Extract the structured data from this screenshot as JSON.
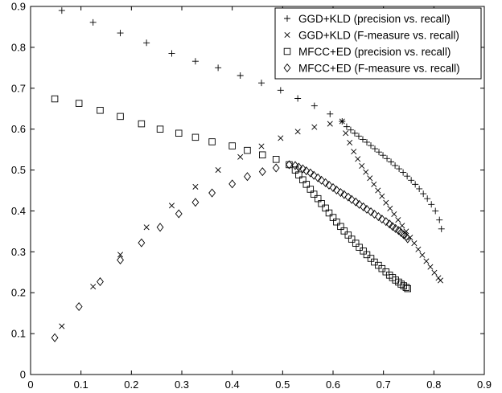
{
  "chart_data": {
    "type": "scatter",
    "title": "",
    "xlabel": "",
    "ylabel": "",
    "xlim": [
      0,
      0.9
    ],
    "ylim": [
      0,
      0.9
    ],
    "xticks": [
      "0",
      "0.1",
      "0.2",
      "0.3",
      "0.4",
      "0.5",
      "0.6",
      "0.7",
      "0.8",
      "0.9"
    ],
    "yticks": [
      "0",
      "0.1",
      "0.2",
      "0.3",
      "0.4",
      "0.5",
      "0.6",
      "0.7",
      "0.8",
      "0.9"
    ],
    "grid": false,
    "legend_position": "top-right",
    "series": [
      {
        "name": "GGD+KLD (precision vs. recall)",
        "marker": "plus",
        "x": [
          0.062,
          0.124,
          0.178,
          0.23,
          0.28,
          0.327,
          0.372,
          0.416,
          0.458,
          0.496,
          0.53,
          0.563,
          0.594,
          0.618,
          0.627,
          0.635,
          0.643,
          0.651,
          0.659,
          0.667,
          0.675,
          0.683,
          0.691,
          0.699,
          0.707,
          0.715,
          0.723,
          0.731,
          0.739,
          0.747,
          0.755,
          0.763,
          0.771,
          0.779,
          0.787,
          0.795,
          0.803,
          0.811,
          0.815
        ],
        "y": [
          0.89,
          0.861,
          0.835,
          0.811,
          0.785,
          0.766,
          0.75,
          0.731,
          0.713,
          0.695,
          0.675,
          0.657,
          0.637,
          0.619,
          0.606,
          0.598,
          0.59,
          0.583,
          0.575,
          0.568,
          0.56,
          0.552,
          0.544,
          0.536,
          0.528,
          0.52,
          0.511,
          0.503,
          0.494,
          0.485,
          0.475,
          0.465,
          0.454,
          0.442,
          0.43,
          0.416,
          0.4,
          0.378,
          0.356
        ]
      },
      {
        "name": "GGD+KLD (F-measure vs. recall)",
        "marker": "x",
        "x": [
          0.062,
          0.124,
          0.178,
          0.23,
          0.28,
          0.327,
          0.372,
          0.416,
          0.458,
          0.496,
          0.53,
          0.563,
          0.594,
          0.618,
          0.625,
          0.633,
          0.641,
          0.649,
          0.657,
          0.665,
          0.673,
          0.681,
          0.689,
          0.697,
          0.705,
          0.713,
          0.721,
          0.729,
          0.737,
          0.745,
          0.753,
          0.761,
          0.769,
          0.777,
          0.785,
          0.793,
          0.801,
          0.809,
          0.813
        ],
        "y": [
          0.118,
          0.215,
          0.293,
          0.36,
          0.413,
          0.459,
          0.5,
          0.532,
          0.558,
          0.578,
          0.594,
          0.605,
          0.613,
          0.619,
          0.59,
          0.567,
          0.545,
          0.527,
          0.51,
          0.495,
          0.48,
          0.465,
          0.45,
          0.436,
          0.42,
          0.406,
          0.392,
          0.378,
          0.364,
          0.35,
          0.335,
          0.321,
          0.306,
          0.292,
          0.277,
          0.263,
          0.249,
          0.236,
          0.23
        ]
      },
      {
        "name": "MFCC+ED (precision vs. recall)",
        "marker": "square",
        "x": [
          0.048,
          0.096,
          0.138,
          0.178,
          0.22,
          0.257,
          0.294,
          0.327,
          0.36,
          0.4,
          0.43,
          0.46,
          0.487,
          0.513,
          0.525,
          0.532,
          0.54,
          0.547,
          0.555,
          0.562,
          0.57,
          0.577,
          0.585,
          0.592,
          0.6,
          0.607,
          0.615,
          0.622,
          0.63,
          0.637,
          0.645,
          0.652,
          0.66,
          0.667,
          0.675,
          0.682,
          0.69,
          0.697,
          0.705,
          0.712,
          0.718,
          0.724,
          0.73,
          0.735,
          0.74,
          0.745,
          0.748
        ],
        "y": [
          0.674,
          0.663,
          0.646,
          0.631,
          0.613,
          0.6,
          0.59,
          0.58,
          0.569,
          0.559,
          0.548,
          0.537,
          0.526,
          0.513,
          0.5,
          0.488,
          0.476,
          0.465,
          0.453,
          0.441,
          0.43,
          0.418,
          0.407,
          0.395,
          0.384,
          0.373,
          0.362,
          0.351,
          0.341,
          0.331,
          0.321,
          0.311,
          0.302,
          0.293,
          0.284,
          0.275,
          0.267,
          0.259,
          0.251,
          0.243,
          0.237,
          0.231,
          0.226,
          0.221,
          0.217,
          0.213,
          0.21
        ]
      },
      {
        "name": "MFCC+ED (F-measure vs. recall)",
        "marker": "diamond",
        "x": [
          0.048,
          0.096,
          0.138,
          0.178,
          0.22,
          0.257,
          0.294,
          0.327,
          0.36,
          0.4,
          0.43,
          0.46,
          0.487,
          0.513,
          0.525,
          0.532,
          0.54,
          0.547,
          0.555,
          0.562,
          0.57,
          0.577,
          0.585,
          0.592,
          0.6,
          0.607,
          0.615,
          0.622,
          0.63,
          0.637,
          0.645,
          0.652,
          0.66,
          0.667,
          0.675,
          0.682,
          0.69,
          0.697,
          0.705,
          0.712,
          0.718,
          0.724,
          0.73,
          0.735,
          0.74,
          0.745,
          0.748
        ],
        "y": [
          0.09,
          0.166,
          0.227,
          0.28,
          0.322,
          0.36,
          0.393,
          0.421,
          0.444,
          0.466,
          0.484,
          0.496,
          0.505,
          0.513,
          0.511,
          0.507,
          0.503,
          0.498,
          0.493,
          0.487,
          0.481,
          0.475,
          0.469,
          0.463,
          0.457,
          0.451,
          0.445,
          0.44,
          0.434,
          0.428,
          0.422,
          0.416,
          0.41,
          0.404,
          0.398,
          0.392,
          0.386,
          0.38,
          0.374,
          0.368,
          0.362,
          0.357,
          0.352,
          0.347,
          0.342,
          0.337,
          0.332
        ]
      }
    ]
  }
}
